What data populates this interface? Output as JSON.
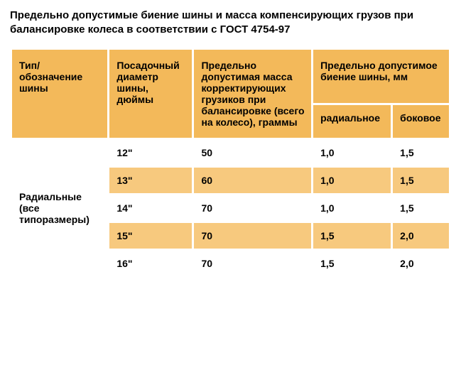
{
  "title": "Предельно допустимые биение шины и масса компенсирующих грузов при балансировке колеса в соответствии с ГОСТ 4754-97",
  "headers": {
    "type": "Тип/обозначение шины",
    "diameter": "Посадочный диаметр шины,\nдюймы",
    "mass": "Предельно допустимая масса корректирующих грузиков при балансировке (всего на колесо), граммы",
    "runout": "Предельно допустимое биение шины, мм",
    "radial": "радиальное",
    "lateral": "боковое"
  },
  "typeGroupLabel": "Радиальные (все типоразмеры)",
  "rows": [
    {
      "d": "12\"",
      "m": "50",
      "r": "1,0",
      "l": "1,5"
    },
    {
      "d": "13\"",
      "m": "60",
      "r": "1,0",
      "l": "1,5"
    },
    {
      "d": "14\"",
      "m": "70",
      "r": "1,0",
      "l": "1,5"
    },
    {
      "d": "15\"",
      "m": "70",
      "r": "1,5",
      "l": "2,0"
    },
    {
      "d": "16\"",
      "m": "70",
      "r": "1,5",
      "l": "2,0"
    }
  ],
  "colors": {
    "header_bg": "#f3b95a",
    "alt_row_bg": "#f7c97e",
    "row_bg": "#ffffff",
    "page_bg": "#ffffff",
    "text": "#000000"
  }
}
